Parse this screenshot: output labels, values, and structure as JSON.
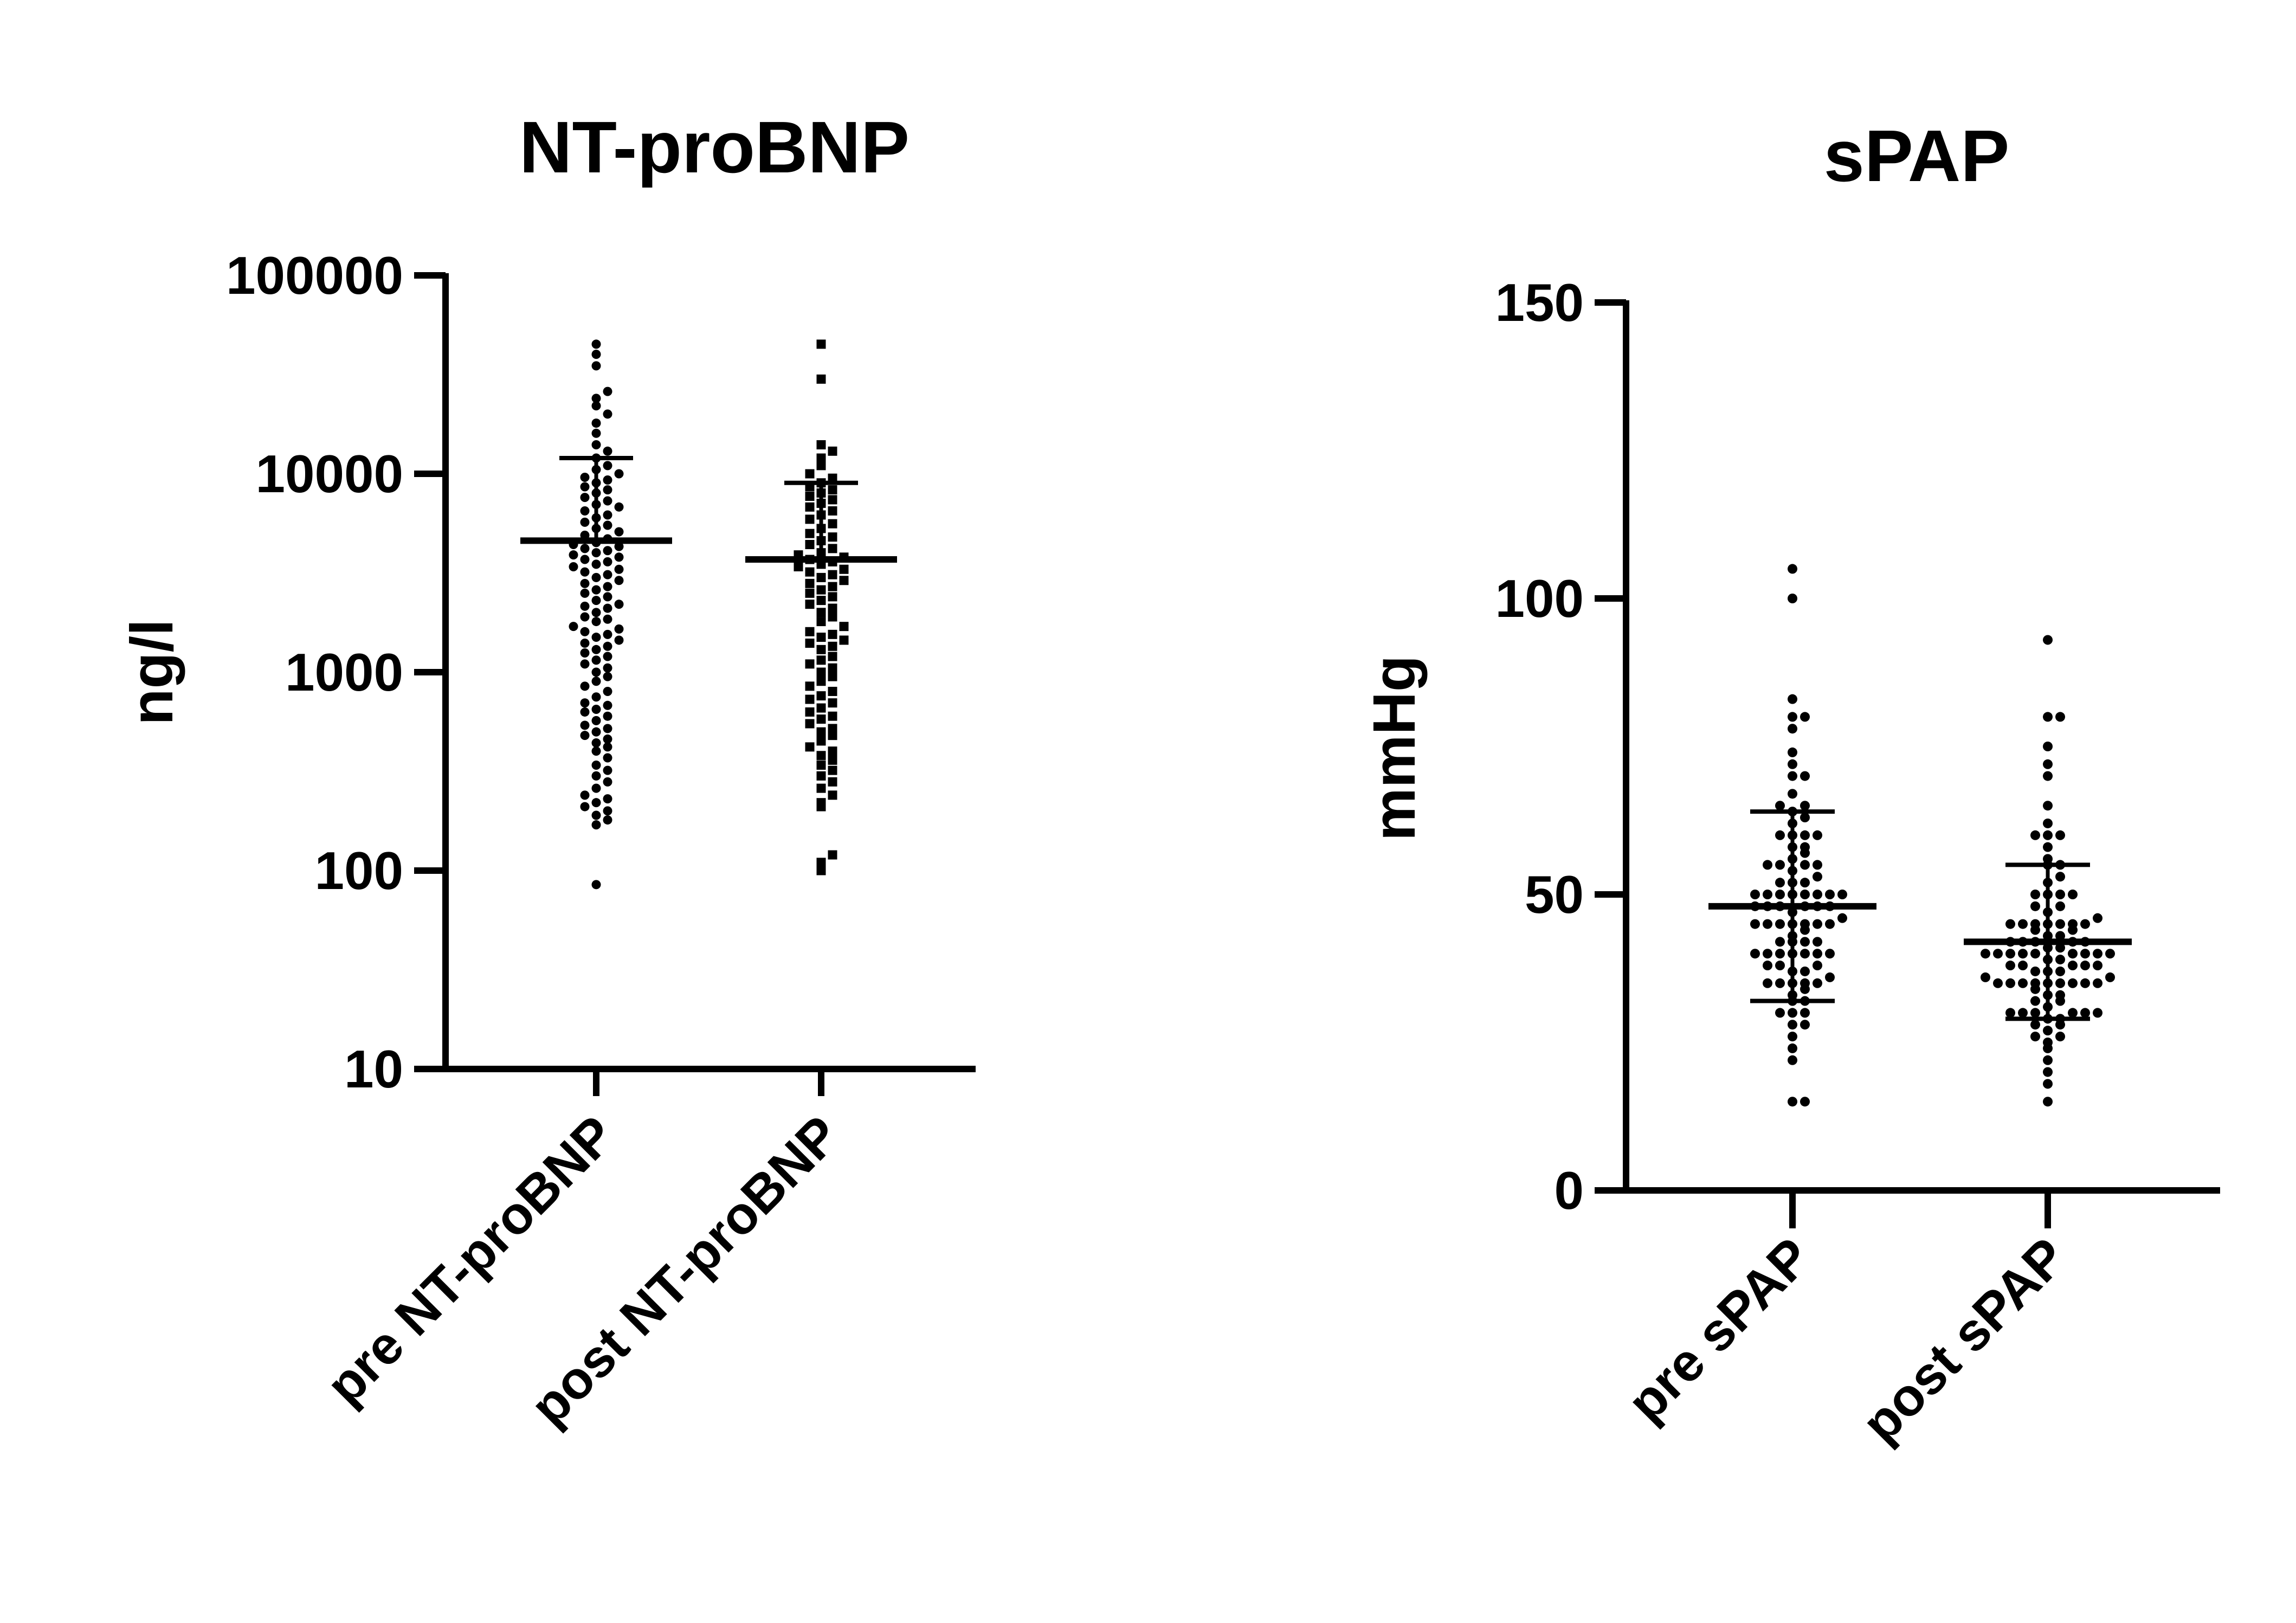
{
  "chart_data": [
    {
      "type": "scatter",
      "subtype": "dot-plot-with-mean-sd",
      "title": "NT-proBNP",
      "ylabel": "ng/l",
      "xlabel": "",
      "yscale": "log",
      "ylim": [
        10,
        100000
      ],
      "yticks": [
        10,
        100,
        1000,
        10000,
        100000
      ],
      "ytick_labels": [
        "10",
        "100",
        "1000",
        "10000",
        "100000"
      ],
      "categories": [
        "pre NT-proBNP",
        "post NT-proBNP"
      ],
      "marker_shapes": [
        "circle",
        "square"
      ],
      "series": [
        {
          "category": "pre NT-proBNP",
          "mean": 4600,
          "sd_upper": 12000,
          "values": [
            85,
            170,
            180,
            190,
            200,
            210,
            220,
            230,
            240,
            260,
            280,
            300,
            320,
            340,
            370,
            400,
            420,
            440,
            460,
            480,
            500,
            520,
            540,
            570,
            600,
            630,
            650,
            680,
            700,
            750,
            800,
            850,
            900,
            950,
            1000,
            1050,
            1100,
            1150,
            1200,
            1250,
            1300,
            1350,
            1400,
            1450,
            1500,
            1550,
            1600,
            1650,
            1700,
            1800,
            1850,
            1900,
            2000,
            2100,
            2150,
            2200,
            2300,
            2400,
            2500,
            2600,
            2700,
            2800,
            2900,
            3000,
            3100,
            3200,
            3300,
            3400,
            3500,
            3600,
            3700,
            3800,
            3900,
            4000,
            4100,
            4200,
            4300,
            4400,
            4500,
            4700,
            4900,
            5100,
            5300,
            5500,
            5700,
            6000,
            6200,
            6500,
            6800,
            7000,
            7300,
            7600,
            8000,
            8300,
            8600,
            9000,
            9300,
            9600,
            10000,
            10500,
            11000,
            12000,
            13000,
            14000,
            16000,
            18000,
            20000,
            22000,
            24000,
            26000,
            35000,
            40000,
            45000
          ]
        },
        {
          "category": "post NT-proBNP",
          "mean": 3700,
          "sd_upper": 9000,
          "values": [
            100,
            110,
            120,
            210,
            220,
            240,
            260,
            280,
            300,
            320,
            340,
            360,
            380,
            400,
            420,
            450,
            480,
            500,
            520,
            550,
            580,
            600,
            630,
            660,
            700,
            730,
            760,
            800,
            850,
            900,
            950,
            1000,
            1050,
            1100,
            1150,
            1200,
            1300,
            1350,
            1400,
            1450,
            1500,
            1550,
            1600,
            1700,
            1800,
            1900,
            2000,
            2100,
            2200,
            2300,
            2400,
            2500,
            2600,
            2700,
            2800,
            2900,
            3000,
            3100,
            3200,
            3300,
            3400,
            3500,
            3600,
            3700,
            3800,
            3900,
            4000,
            4200,
            4400,
            4600,
            4800,
            5000,
            5300,
            5600,
            5900,
            6200,
            6500,
            6800,
            7100,
            7400,
            7700,
            8000,
            8300,
            8600,
            9000,
            9500,
            10000,
            11000,
            12000,
            13000,
            14000,
            30000,
            45000
          ]
        }
      ]
    },
    {
      "type": "scatter",
      "subtype": "dot-plot-with-mean-sd",
      "title": "sPAP",
      "ylabel": "mmHg",
      "xlabel": "",
      "yscale": "linear",
      "ylim": [
        0,
        150
      ],
      "yticks": [
        0,
        50,
        100,
        150
      ],
      "ytick_labels": [
        "0",
        "50",
        "100",
        "150"
      ],
      "categories": [
        "pre sPAP",
        "post sPAP"
      ],
      "marker_shapes": [
        "circle",
        "circle"
      ],
      "series": [
        {
          "category": "pre sPAP",
          "mean": 48,
          "sd_lower": 32,
          "sd_upper": 64,
          "values": [
            15,
            15,
            22,
            24,
            26,
            28,
            28,
            30,
            30,
            30,
            32,
            32,
            33,
            34,
            35,
            35,
            35,
            35,
            35,
            36,
            37,
            37,
            38,
            38,
            38,
            40,
            40,
            40,
            40,
            40,
            40,
            40,
            42,
            42,
            42,
            42,
            43,
            44,
            45,
            45,
            45,
            45,
            45,
            45,
            45,
            46,
            47,
            48,
            48,
            48,
            48,
            48,
            48,
            50,
            50,
            50,
            50,
            50,
            50,
            50,
            50,
            52,
            52,
            52,
            53,
            54,
            55,
            55,
            55,
            55,
            56,
            57,
            58,
            58,
            60,
            60,
            60,
            60,
            62,
            63,
            64,
            65,
            65,
            67,
            70,
            70,
            72,
            74,
            78,
            80,
            80,
            83,
            100,
            105
          ]
        },
        {
          "category": "post sPAP",
          "mean": 42,
          "sd_lower": 29,
          "sd_upper": 55,
          "values": [
            15,
            18,
            20,
            22,
            24,
            25,
            26,
            26,
            27,
            28,
            28,
            29,
            29,
            30,
            30,
            30,
            30,
            30,
            30,
            31,
            32,
            32,
            33,
            33,
            34,
            35,
            35,
            35,
            35,
            35,
            35,
            35,
            35,
            35,
            36,
            36,
            37,
            37,
            37,
            38,
            38,
            38,
            38,
            38,
            39,
            39,
            40,
            40,
            40,
            40,
            40,
            40,
            40,
            40,
            40,
            41,
            41,
            42,
            42,
            42,
            42,
            42,
            43,
            43,
            44,
            44,
            45,
            45,
            45,
            45,
            45,
            45,
            45,
            46,
            47,
            48,
            48,
            50,
            50,
            50,
            50,
            52,
            53,
            55,
            55,
            56,
            58,
            60,
            60,
            60,
            62,
            65,
            70,
            72,
            75,
            80,
            80,
            93
          ]
        }
      ]
    }
  ]
}
